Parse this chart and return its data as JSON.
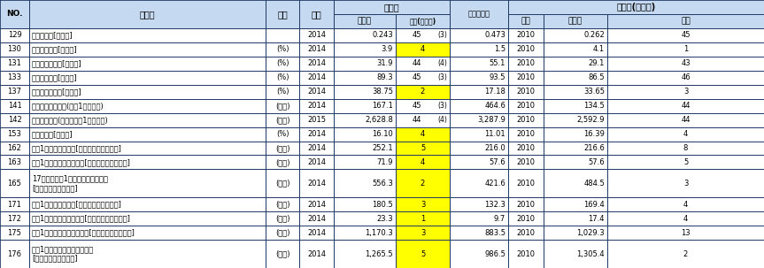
{
  "rows": [
    [
      "129",
      "財政力指数[県財政]",
      "",
      "2014",
      "0.243",
      "45",
      "(3)",
      "0.473",
      "2010",
      "0.262",
      "45"
    ],
    [
      "130",
      "実質収支比率[県財政]",
      "(%)",
      "2014",
      "3.9",
      "4",
      "",
      "1.5",
      "2010",
      "4.1",
      "1"
    ],
    [
      "131",
      "自主財源の割合[県財政]",
      "(%)",
      "2014",
      "31.9",
      "44",
      "(4)",
      "55.1",
      "2010",
      "29.1",
      "43"
    ],
    [
      "133",
      "経常収支比率[県財政]",
      "(%)",
      "2014",
      "89.3",
      "45",
      "(3)",
      "93.5",
      "2010",
      "86.5",
      "46"
    ],
    [
      "137",
      "地方交付税割合[県財政]",
      "(%)",
      "2014",
      "38.75",
      "2",
      "",
      "17.18",
      "2010",
      "33.65",
      "3"
    ],
    [
      "141",
      "国税徴収決定済額(人口1人当たり)",
      "(千円)",
      "2014",
      "167.1",
      "45",
      "(3)",
      "464.6",
      "2010",
      "134.5",
      "44"
    ],
    [
      "142",
      "課税対象所得(納税義務者1人当たり)",
      "(千円)",
      "2015",
      "2,628.8",
      "44",
      "(4)",
      "3,287.9",
      "2010",
      "2,592.9",
      "44"
    ],
    [
      "153",
      "土木費割合[県財政]",
      "(%)",
      "2014",
      "16.10",
      "4",
      "",
      "11.01",
      "2010",
      "16.39",
      "4"
    ],
    [
      "162",
      "人口1人当たり民生費[県・市町村財政合計]",
      "(千円)",
      "2014",
      "252.1",
      "5",
      "",
      "216.0",
      "2010",
      "216.6",
      "8"
    ],
    [
      "163",
      "人口1人当たり社会福祉費[県・市町村財政合計]",
      "(千円)",
      "2014",
      "71.9",
      "4",
      "",
      "57.6",
      "2010",
      "57.6",
      "5"
    ],
    [
      "165",
      "17歳以下人口1人当たり児童福祉費\n[県・市町村財政合計]",
      "(千円)",
      "2014",
      "556.3",
      "2",
      "",
      "421.6",
      "2010",
      "484.5",
      "3"
    ],
    [
      "171",
      "人口1人当たり教育費[県・市町村財政合計]",
      "(千円)",
      "2014",
      "180.5",
      "3",
      "",
      "132.3",
      "2010",
      "169.4",
      "4"
    ],
    [
      "172",
      "人口1人当たり社会教育費[県・市町村財政合計]",
      "(千円)",
      "2014",
      "23.3",
      "1",
      "",
      "9.7",
      "2010",
      "17.4",
      "4"
    ],
    [
      "175",
      "生徒1人当たり公立中学校費[県・市町村財政合計]",
      "(千円)",
      "2014",
      "1,170.3",
      "3",
      "",
      "883.5",
      "2010",
      "1,029.3",
      "13"
    ],
    [
      "176",
      "生徒1人当たり公立高等学校費\n[県・市町村財政合計]",
      "(千円)",
      "2014",
      "1,265.5",
      "5",
      "",
      "986.5",
      "2010",
      "1,305.4",
      "2"
    ]
  ],
  "yellow_rows": [
    1,
    4,
    7,
    8,
    9,
    10,
    11,
    12,
    13,
    14
  ],
  "bg_header": "#c5daf0",
  "border_color": "#1f3864",
  "text_color": "#000000",
  "yellow": "#ffff00",
  "white": "#ffffff",
  "light_blue_row": "#dce6f1"
}
